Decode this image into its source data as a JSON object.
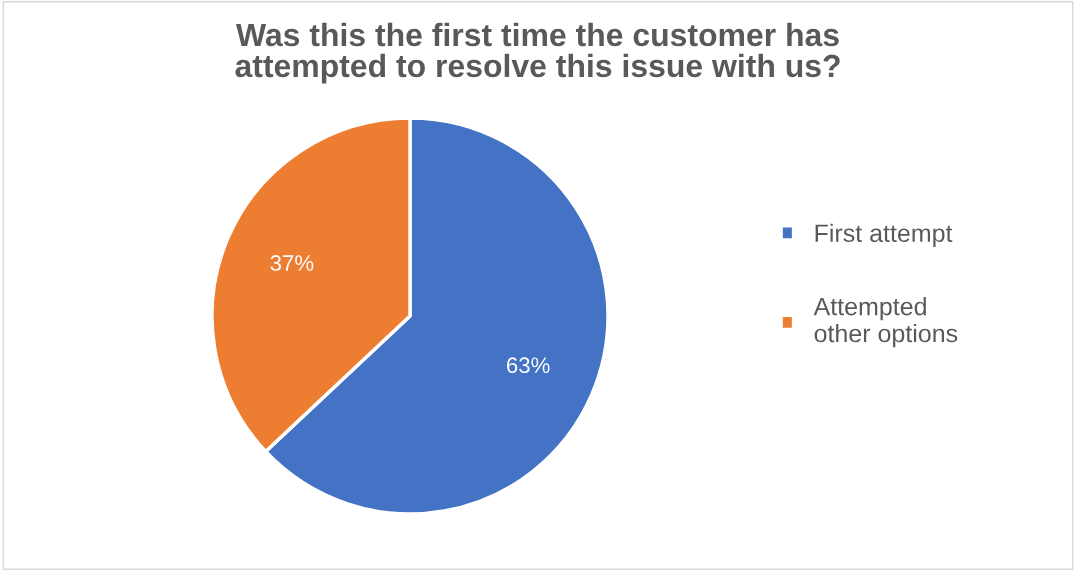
{
  "chart_data": {
    "type": "pie",
    "title": "Was this the first time the customer has\nattempted to resolve this issue with us?",
    "categories": [
      "First attempt",
      "Attempted\nother options"
    ],
    "values": [
      63,
      37
    ],
    "colors": [
      "#4472c4",
      "#ed7d31"
    ],
    "value_labels": [
      "63%",
      "37%"
    ],
    "legend": "right"
  }
}
